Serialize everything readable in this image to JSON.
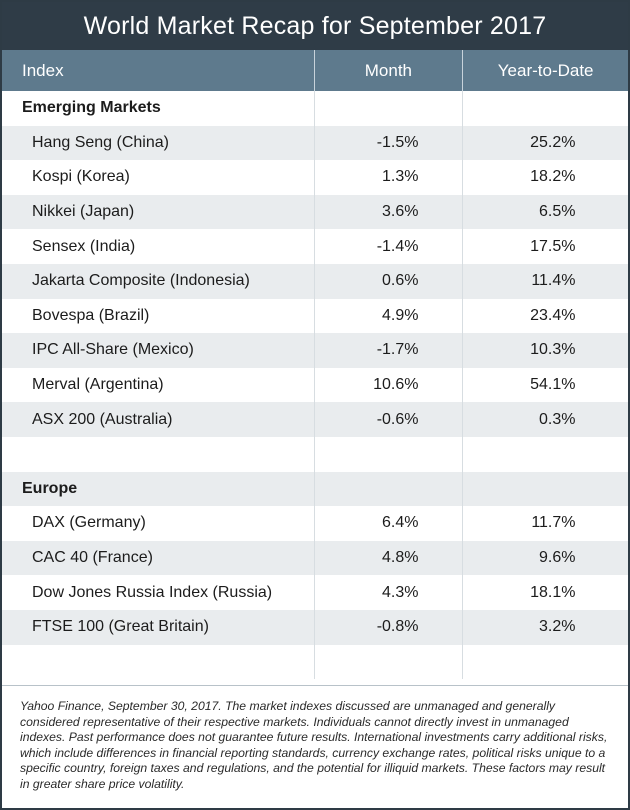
{
  "title": "World Market Recap for September 2017",
  "columns": {
    "index": "Index",
    "month": "Month",
    "ytd": "Year-to-Date"
  },
  "sections": [
    {
      "name": "Emerging Markets",
      "rows": [
        {
          "index": "Hang Seng (China)",
          "month": "-1.5%",
          "ytd": "25.2%"
        },
        {
          "index": "Kospi (Korea)",
          "month": "1.3%",
          "ytd": "18.2%"
        },
        {
          "index": "Nikkei (Japan)",
          "month": "3.6%",
          "ytd": "6.5%"
        },
        {
          "index": "Sensex (India)",
          "month": "-1.4%",
          "ytd": "17.5%"
        },
        {
          "index": "Jakarta Composite (Indonesia)",
          "month": "0.6%",
          "ytd": "11.4%"
        },
        {
          "index": "Bovespa (Brazil)",
          "month": "4.9%",
          "ytd": "23.4%"
        },
        {
          "index": "IPC All-Share (Mexico)",
          "month": "-1.7%",
          "ytd": "10.3%"
        },
        {
          "index": "Merval (Argentina)",
          "month": "10.6%",
          "ytd": "54.1%"
        },
        {
          "index": "ASX 200 (Australia)",
          "month": "-0.6%",
          "ytd": "0.3%"
        }
      ]
    },
    {
      "name": "Europe",
      "rows": [
        {
          "index": "DAX (Germany)",
          "month": "6.4%",
          "ytd": "11.7%"
        },
        {
          "index": "CAC 40 (France)",
          "month": "4.8%",
          "ytd": "9.6%"
        },
        {
          "index": "Dow Jones Russia Index (Russia)",
          "month": "4.3%",
          "ytd": "18.1%"
        },
        {
          "index": "FTSE 100 (Great Britain)",
          "month": "-0.8%",
          "ytd": "3.2%"
        }
      ]
    }
  ],
  "footnote": "Yahoo Finance, September 30, 2017. The market indexes discussed are unmanaged and generally considered representative of their respective markets. Individuals cannot directly invest in unmanaged indexes. Past performance does not guarantee future results. International investments carry additional risks, which include differences in financial reporting standards, currency exchange rates, political risks unique to a specific country, foreign taxes and regulations, and the potential for illiquid markets. These factors may result in greater share price volatility."
}
